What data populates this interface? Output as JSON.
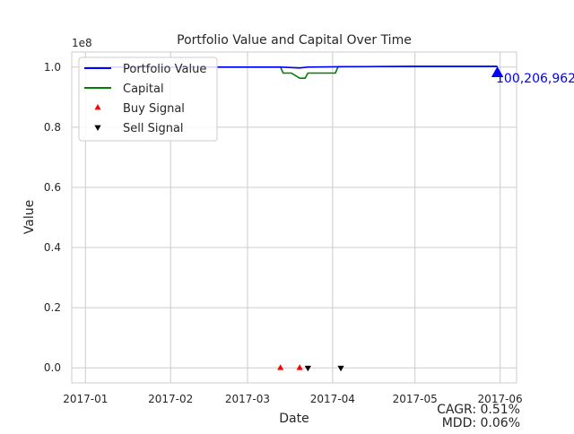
{
  "chart_data": {
    "type": "line",
    "title": "Portfolio Value and Capital Over Time",
    "xlabel": "Date",
    "ylabel": "Value",
    "y_multiplier_label": "1e8",
    "x_range": [
      "2016-12-27",
      "2017-06-07"
    ],
    "x_ticks": [
      "2017-01",
      "2017-02",
      "2017-03",
      "2017-04",
      "2017-05",
      "2017-06"
    ],
    "ylim": [
      -0.05,
      1.05
    ],
    "y_ticks": [
      "0.0",
      "0.2",
      "0.4",
      "0.6",
      "0.8",
      "1.0"
    ],
    "y_tick_values": [
      0.0,
      0.2,
      0.4,
      0.6,
      0.8,
      1.0
    ],
    "grid": true,
    "legend_position": "top-left",
    "series": [
      {
        "name": "Portfolio Value",
        "color": "#0000ff",
        "x": [
          "2017-01-01",
          "2017-03-13",
          "2017-03-20",
          "2017-03-23",
          "2017-04-03",
          "2017-05-01",
          "2017-05-31"
        ],
        "y": [
          1.0,
          1.0,
          0.997,
          1.0,
          1.001,
          1.002,
          1.002
        ]
      },
      {
        "name": "Capital",
        "color": "#008000",
        "x": [
          "2017-01-01",
          "2017-03-13",
          "2017-03-14",
          "2017-03-17",
          "2017-03-20",
          "2017-03-22",
          "2017-03-23",
          "2017-04-02",
          "2017-04-03",
          "2017-05-01",
          "2017-05-31"
        ],
        "y": [
          1.0,
          1.0,
          0.98,
          0.98,
          0.963,
          0.963,
          0.98,
          0.98,
          1.001,
          1.002,
          1.002
        ]
      }
    ],
    "markers": [
      {
        "name": "Buy Signal",
        "color": "#ff0000",
        "symbol": "triangle-up",
        "x": [
          "2017-03-13",
          "2017-03-20"
        ],
        "y": [
          0,
          0
        ]
      },
      {
        "name": "Sell Signal",
        "color": "#000000",
        "symbol": "triangle-down",
        "x": [
          "2017-03-23",
          "2017-04-04"
        ],
        "y": [
          0,
          0
        ]
      }
    ],
    "end_point": {
      "x": "2017-05-31",
      "y": 0.98,
      "label": "100,206,962",
      "color": "#0000ff"
    },
    "annotations": {
      "cagr": "CAGR: 0.51%",
      "mdd": "MDD: 0.06%"
    }
  }
}
